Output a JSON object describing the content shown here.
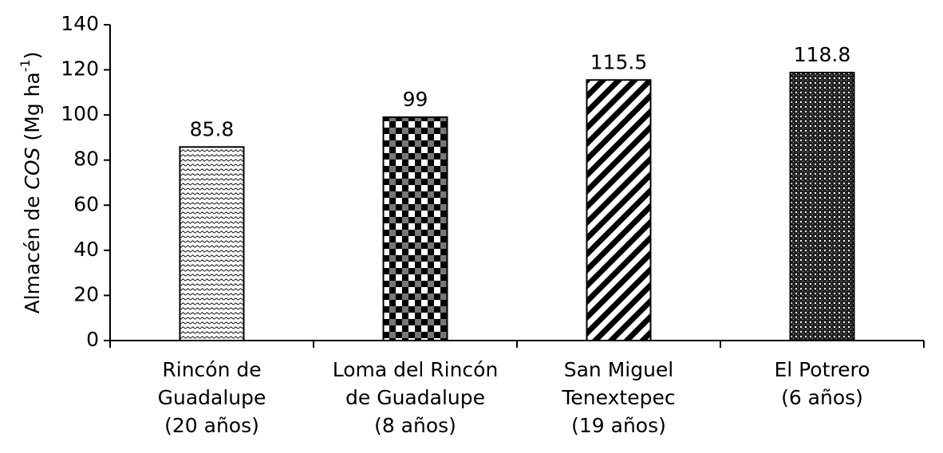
{
  "chart_data": {
    "type": "bar",
    "y_label": [
      "Almacén de ",
      "COS",
      " (Mg ha",
      "-1",
      ")"
    ],
    "categories": [
      [
        "Rincón de",
        "Guadalupe",
        "(20 años)"
      ],
      [
        "Loma del Rincón",
        "de Guadalupe",
        "(8 años)"
      ],
      [
        "San Miguel",
        "Tenextepec",
        "(19 años)"
      ],
      [
        "El Potrero",
        "(6 años)"
      ]
    ],
    "values": [
      85.8,
      99,
      115.5,
      118.8
    ],
    "ylim": [
      0,
      140
    ],
    "yticks": [
      0,
      20,
      40,
      60,
      80,
      100,
      120,
      140
    ],
    "grid": false
  }
}
